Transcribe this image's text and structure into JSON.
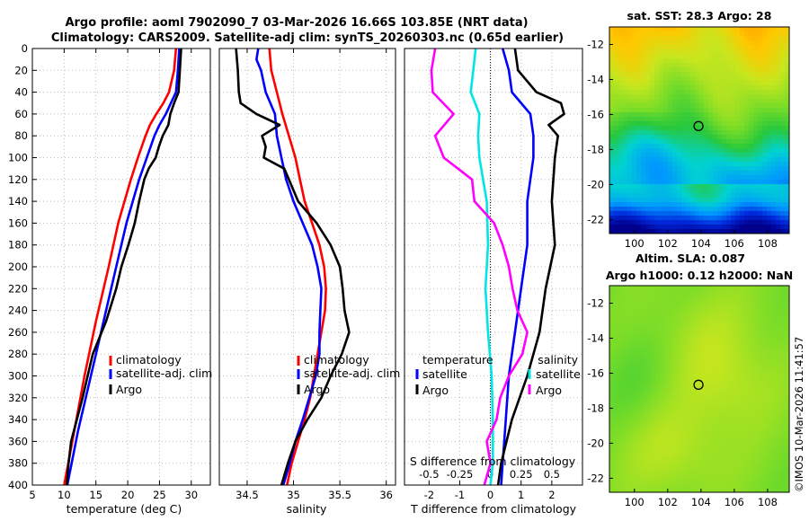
{
  "title": {
    "line1": "Argo profile: aoml 7902090_7 03-Mar-2026 16.66S 103.85E (NRT data)",
    "line2": "Climatology: CARS2009. Satellite-adj clim: synTS_20260303.nc (0.65d earlier)"
  },
  "colors": {
    "climatology": "#ff0000",
    "satellite": "#0000ff",
    "argo": "#000000",
    "s_argo": "#ff00ff",
    "s_sat": "#00e5e5"
  },
  "chart_data": [
    {
      "id": "temperature",
      "type": "line",
      "xlabel": "temperature (deg C)",
      "ylabel": "",
      "xlim": [
        5,
        33
      ],
      "ylim": [
        400,
        0
      ],
      "xticks": [
        5,
        10,
        15,
        20,
        25,
        30
      ],
      "yticks": [
        0,
        20,
        40,
        60,
        80,
        100,
        120,
        140,
        160,
        180,
        200,
        220,
        240,
        260,
        280,
        300,
        320,
        340,
        360,
        380,
        400
      ],
      "legend": [
        "climatology",
        "satellite-adj. clim",
        "Argo"
      ],
      "series": [
        {
          "name": "climatology",
          "color": "#ff0000",
          "depth": [
            0,
            20,
            40,
            50,
            60,
            70,
            80,
            100,
            120,
            140,
            160,
            200,
            250,
            300,
            350,
            400
          ],
          "values": [
            27.6,
            27.3,
            26.5,
            25.6,
            24.5,
            23.5,
            22.8,
            21.6,
            20.5,
            19.5,
            18.5,
            17.0,
            15.0,
            13.2,
            11.6,
            10.0
          ]
        },
        {
          "name": "satellite-adj. clim",
          "color": "#0000ff",
          "depth": [
            0,
            20,
            40,
            60,
            70,
            80,
            100,
            120,
            140,
            160,
            200,
            250,
            300,
            350,
            400
          ],
          "values": [
            28.1,
            27.9,
            27.6,
            26.0,
            25.0,
            24.2,
            23.0,
            21.8,
            20.8,
            19.8,
            18.2,
            16.2,
            14.2,
            12.2,
            10.5
          ]
        },
        {
          "name": "Argo",
          "color": "#000000",
          "depth": [
            0,
            20,
            40,
            50,
            60,
            70,
            80,
            90,
            100,
            110,
            120,
            140,
            160,
            180,
            200,
            220,
            250,
            280,
            300,
            320,
            340,
            360,
            380,
            400
          ],
          "values": [
            28.4,
            28.2,
            28.0,
            27.3,
            26.7,
            26.4,
            25.5,
            24.9,
            24.4,
            23.3,
            22.6,
            21.8,
            21.1,
            20.1,
            19.0,
            18.2,
            16.6,
            14.5,
            13.7,
            12.9,
            12.0,
            11.1,
            10.7,
            10.4
          ]
        }
      ]
    },
    {
      "id": "salinity",
      "type": "line",
      "xlabel": "salinity",
      "xlim": [
        34.2,
        36.1
      ],
      "ylim": [
        400,
        0
      ],
      "xticks": [
        34.5,
        35,
        35.5,
        36
      ],
      "legend": [
        "climatology",
        "satellite-adj. clim",
        "Argo"
      ],
      "series": [
        {
          "name": "climatology",
          "color": "#ff0000",
          "depth": [
            0,
            20,
            40,
            60,
            80,
            100,
            120,
            140,
            160,
            180,
            200,
            220,
            240,
            260,
            280,
            300,
            320,
            340,
            360,
            380,
            400
          ],
          "values": [
            34.74,
            34.76,
            34.82,
            34.88,
            34.95,
            35.02,
            35.07,
            35.12,
            35.2,
            35.28,
            35.33,
            35.35,
            35.34,
            35.3,
            35.26,
            35.22,
            35.18,
            35.12,
            35.05,
            34.98,
            34.93
          ]
        },
        {
          "name": "satellite-adj. clim",
          "color": "#0000ff",
          "depth": [
            0,
            10,
            20,
            40,
            60,
            80,
            100,
            120,
            140,
            160,
            180,
            200,
            220,
            240,
            260,
            280,
            300,
            320,
            340,
            360,
            380,
            400
          ],
          "values": [
            34.62,
            34.6,
            34.65,
            34.7,
            34.8,
            34.82,
            34.87,
            34.92,
            35.0,
            35.1,
            35.2,
            35.26,
            35.3,
            35.29,
            35.28,
            35.28,
            35.24,
            35.17,
            35.1,
            35.02,
            34.96,
            34.89
          ]
        },
        {
          "name": "Argo",
          "color": "#000000",
          "depth": [
            0,
            10,
            20,
            40,
            50,
            60,
            70,
            80,
            90,
            100,
            110,
            120,
            140,
            160,
            180,
            200,
            220,
            240,
            260,
            280,
            300,
            320,
            340,
            360,
            380,
            400
          ],
          "values": [
            34.38,
            34.39,
            34.4,
            34.41,
            34.43,
            34.6,
            34.85,
            34.66,
            34.7,
            34.68,
            34.9,
            34.95,
            35.05,
            35.25,
            35.4,
            35.5,
            35.53,
            35.55,
            35.6,
            35.52,
            35.4,
            35.3,
            35.15,
            35.02,
            34.94,
            34.87
          ]
        }
      ]
    },
    {
      "id": "difference",
      "type": "line",
      "xlabel": "T difference from climatology",
      "x2label": "S difference from climatology",
      "xlim": [
        -2.8,
        3.0
      ],
      "s_xlim": [
        -0.7,
        0.75
      ],
      "ylim": [
        400,
        0
      ],
      "xticks": [
        -2,
        -1,
        0,
        1,
        2
      ],
      "s_xticks": [
        "-0.5",
        "-0.25",
        "0",
        "0.25",
        "0.5"
      ],
      "legend_left_title": "temperature",
      "legend_right_title": "salinity",
      "legend_left": [
        "satellite",
        "Argo"
      ],
      "legend_right": [
        "satellite",
        "Argo"
      ],
      "series": [
        {
          "name": "T satellite",
          "color": "#0000ff",
          "depth": [
            0,
            20,
            40,
            60,
            80,
            100,
            140,
            180,
            220,
            260,
            300,
            340,
            380,
            400
          ],
          "values": [
            0.4,
            0.6,
            0.7,
            1.3,
            1.4,
            1.4,
            1.2,
            1.2,
            1.0,
            0.8,
            0.6,
            0.5,
            0.4,
            0.35
          ]
        },
        {
          "name": "T Argo",
          "color": "#000000",
          "depth": [
            0,
            20,
            40,
            50,
            60,
            70,
            80,
            100,
            140,
            180,
            220,
            260,
            300,
            340,
            380,
            400
          ],
          "values": [
            0.8,
            0.9,
            1.5,
            2.3,
            2.4,
            1.9,
            2.2,
            2.1,
            2.0,
            2.1,
            1.8,
            1.6,
            1.2,
            0.7,
            0.35,
            0.25
          ]
        },
        {
          "name": "S satellite",
          "color": "#00e5e5",
          "depth": [
            0,
            20,
            40,
            60,
            80,
            100,
            140,
            180,
            220,
            260,
            300,
            340,
            380,
            400
          ],
          "values": [
            -0.12,
            -0.14,
            -0.16,
            -0.09,
            -0.1,
            -0.09,
            -0.03,
            -0.02,
            -0.04,
            -0.02,
            0.01,
            0.02,
            0.02,
            0.0
          ]
        },
        {
          "name": "S Argo",
          "color": "#ff00ff",
          "depth": [
            0,
            20,
            40,
            60,
            80,
            100,
            120,
            140,
            160,
            180,
            200,
            220,
            240,
            260,
            280,
            300,
            320,
            340,
            360,
            380,
            400
          ],
          "values": [
            -0.45,
            -0.48,
            -0.47,
            -0.3,
            -0.45,
            -0.38,
            -0.15,
            -0.13,
            0.03,
            0.1,
            0.15,
            0.18,
            0.22,
            0.3,
            0.26,
            0.15,
            0.08,
            0.05,
            -0.03,
            0.0,
            -0.05
          ]
        }
      ]
    },
    {
      "id": "sst-map",
      "type": "heatmap",
      "title": "sat. SST: 28.3 Argo: 28",
      "xlim": [
        98.5,
        109.3
      ],
      "ylim": [
        -22.8,
        -11
      ],
      "xticks": [
        100,
        102,
        104,
        106,
        108
      ],
      "yticks": [
        -12,
        -14,
        -16,
        -18,
        -20,
        -22
      ],
      "marker": {
        "lon": 103.85,
        "lat": -16.66
      }
    },
    {
      "id": "sla-map",
      "type": "heatmap",
      "title_line1": "Altim. SLA: 0.087",
      "title_line2": "Argo h1000: 0.12 h2000: NaN",
      "xlim": [
        98.5,
        109.3
      ],
      "ylim": [
        -22.8,
        -11
      ],
      "xticks": [
        100,
        102,
        104,
        106,
        108
      ],
      "yticks": [
        -12,
        -14,
        -16,
        -18,
        -20,
        -22
      ],
      "marker": {
        "lon": 103.85,
        "lat": -16.66
      }
    }
  ],
  "footer": {
    "credit": "©IMOS 10-Mar-2026 11:41:57"
  }
}
